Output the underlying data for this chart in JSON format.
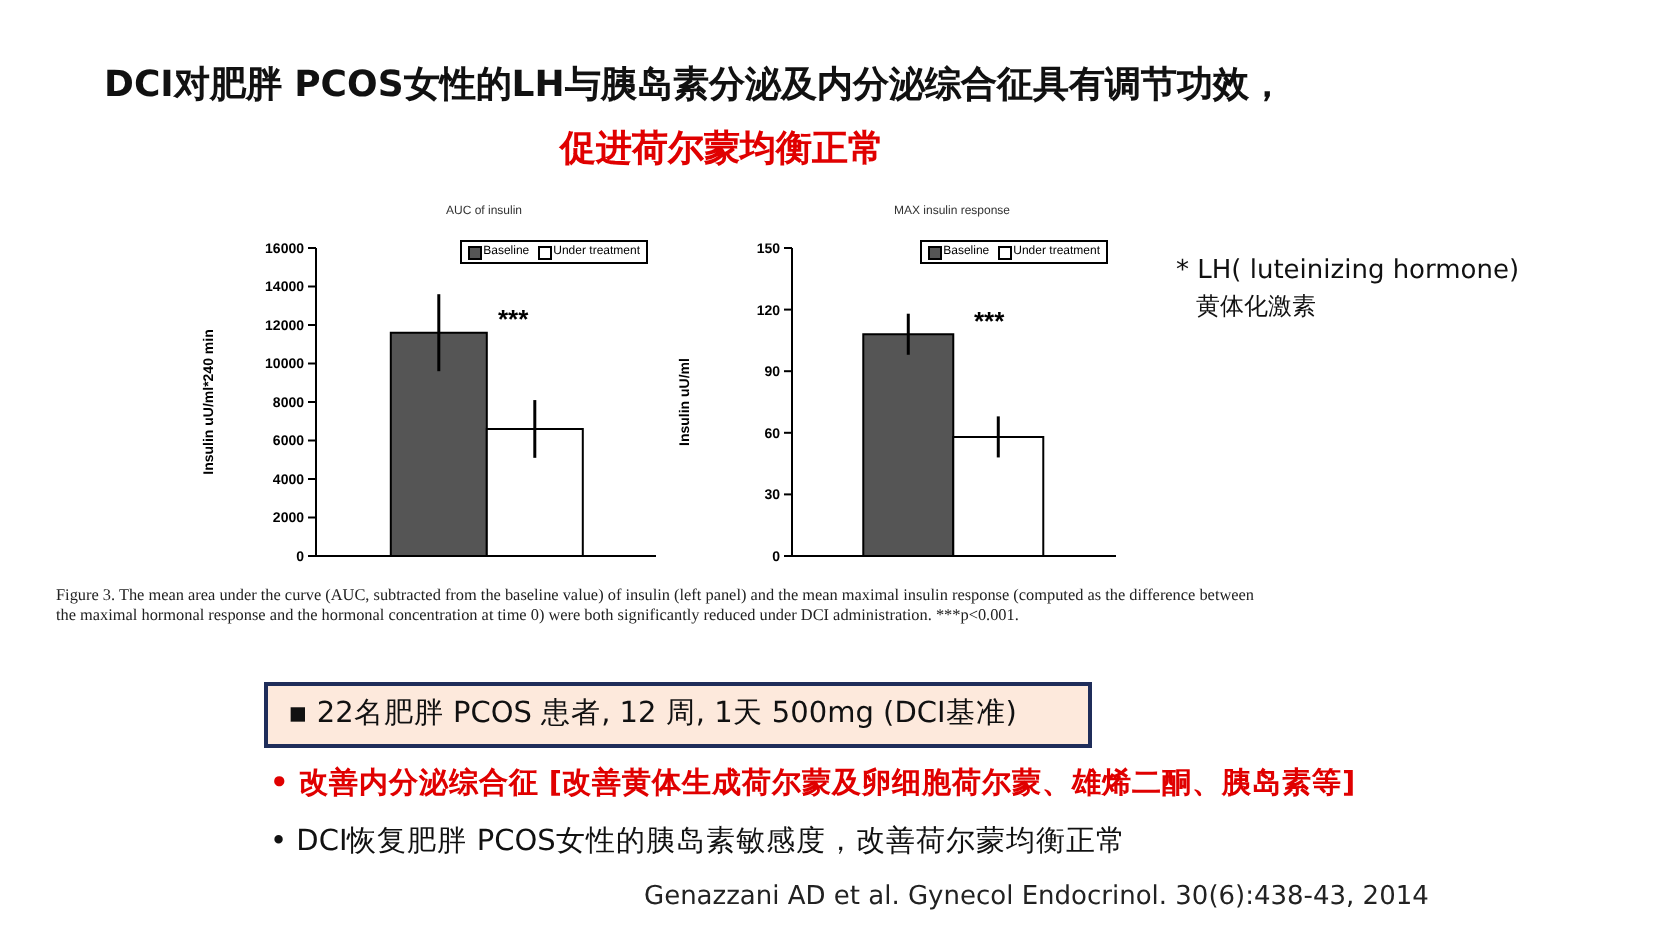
{
  "chart_data": [
    {
      "type": "bar",
      "title": "AUC of insulin",
      "ylabel": "Insulin uU/ml*240 min",
      "categories": [
        null
      ],
      "ylim": [
        0,
        16000
      ],
      "yticks": [
        0,
        2000,
        4000,
        6000,
        8000,
        10000,
        12000,
        14000,
        16000
      ],
      "legend": "top right",
      "series": [
        {
          "name": "Baseline",
          "color": "#555555",
          "values": [
            11600
          ],
          "errors": [
            2000
          ]
        },
        {
          "name": "Under treatment",
          "color": "#ffffff",
          "values": [
            6600
          ],
          "errors": [
            1500
          ]
        }
      ],
      "annotations": [
        "***",
        "DCI对肥胖 PCOS女性的LH与胰岛素分泌及内分泌综合征具有调节功效，",
        "促进荷尔蒙均衡正常",
        "Figure 3. The mean area under the curve (AUC, subtracted from the baseline value) of insulin (left panel) and the mean maximal insulin response (computed as the difference between the maximal hormonal response and the hormonal concentration at time 0) were both significantly reduced under DCI administration. ***p<0.001.",
        "▪   22名肥胖 PCOS 患者, 12 周, 1天 500mg (DCI基准)",
        "•   改善内分泌综合征 [改善黄体生成荷尔蒙及卵细胞荷尔蒙、雄烯二酮、胰岛素等]",
        "•   DCI恢复肥胖 PCOS女性的胰岛素敏感度，改善荷尔蒙均衡正常",
        "Genazzani AD et al. Gynecol Endocrinol. 30(6):438-43, 2014"
      ]
    },
    {
      "type": "bar",
      "title": "MAX insulin response",
      "ylabel": "Insulin uU/ml",
      "categories": [
        null
      ],
      "ylim": [
        0,
        150
      ],
      "yticks": [
        0,
        30,
        60,
        90,
        120,
        150
      ],
      "legend": "top right",
      "series": [
        {
          "name": "Baseline",
          "color": "#555555",
          "values": [
            108
          ],
          "errors": [
            10
          ]
        },
        {
          "name": "Under treatment",
          "color": "#ffffff",
          "values": [
            58
          ],
          "errors": [
            10
          ]
        }
      ],
      "annotations": [
        "***",
        "* LH( luteinizing hormone)",
        "黄体化激素"
      ]
    }
  ]
}
